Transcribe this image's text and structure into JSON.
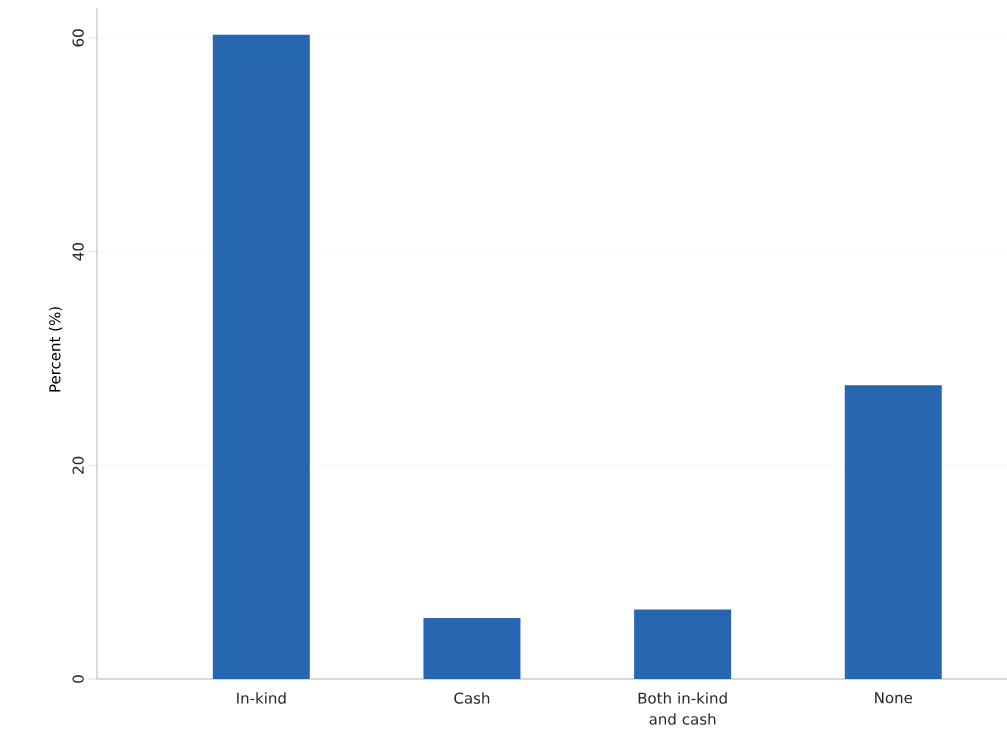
{
  "chart_data": {
    "type": "bar",
    "ylabel": "Percent (%)",
    "categories": [
      "In-kind",
      "Cash",
      "Both in-kind and cash",
      "None"
    ],
    "values": [
      60.3,
      5.7,
      6.5,
      27.5
    ],
    "color": "#2766b0",
    "ylim": [
      0,
      62.8
    ],
    "yticks": [
      0,
      20,
      40,
      60
    ],
    "grid": "y"
  }
}
